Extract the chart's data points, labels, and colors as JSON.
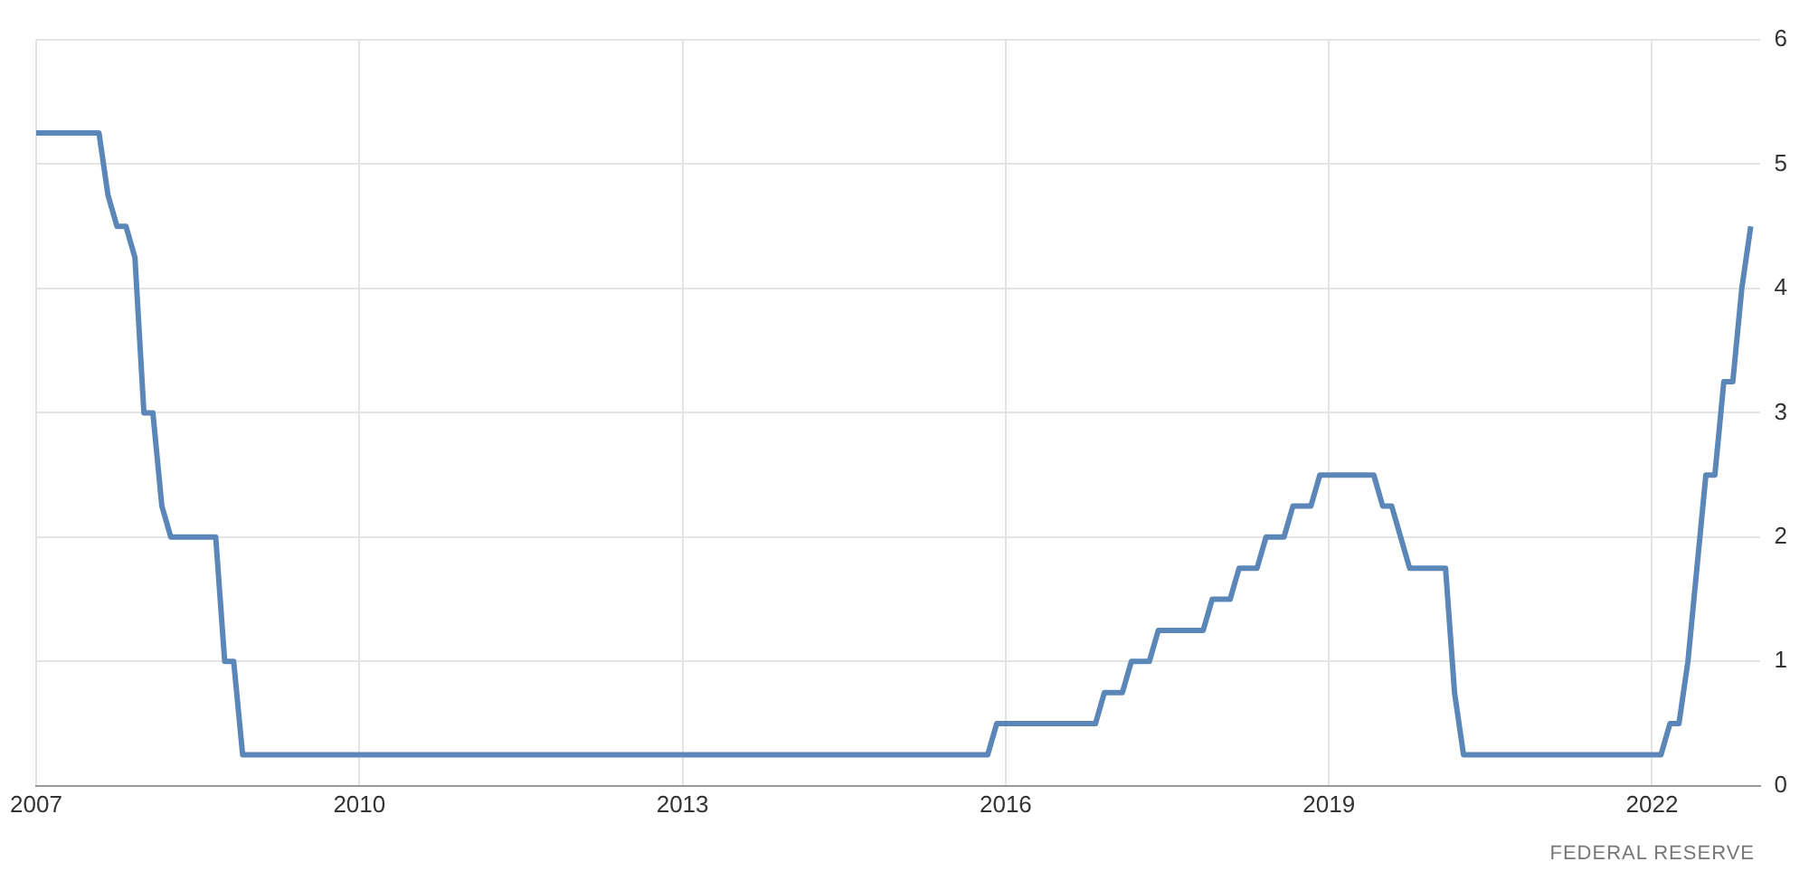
{
  "chart_data": {
    "type": "line",
    "color": "#5b86b8",
    "x": [
      "2007-01",
      "2007-08",
      "2007-09",
      "2007-10",
      "2007-11",
      "2007-12",
      "2008-01",
      "2008-02",
      "2008-03",
      "2008-04",
      "2008-09",
      "2008-10",
      "2008-11",
      "2008-12",
      "2015-11",
      "2015-12",
      "2016-11",
      "2016-12",
      "2017-02",
      "2017-03",
      "2017-05",
      "2017-06",
      "2017-11",
      "2017-12",
      "2018-02",
      "2018-03",
      "2018-05",
      "2018-06",
      "2018-08",
      "2018-09",
      "2018-11",
      "2018-12",
      "2019-06",
      "2019-07",
      "2019-08",
      "2019-09",
      "2019-10",
      "2020-02",
      "2020-03",
      "2020-04",
      "2022-02",
      "2022-03",
      "2022-04",
      "2022-05",
      "2022-06",
      "2022-07",
      "2022-08",
      "2022-09",
      "2022-10",
      "2022-11",
      "2022-12"
    ],
    "values": [
      5.25,
      5.25,
      4.75,
      4.5,
      4.5,
      4.25,
      3.0,
      3.0,
      2.25,
      2.0,
      2.0,
      1.0,
      1.0,
      0.25,
      0.25,
      0.5,
      0.5,
      0.75,
      0.75,
      1.0,
      1.0,
      1.25,
      1.25,
      1.5,
      1.5,
      1.75,
      1.75,
      2.0,
      2.0,
      2.25,
      2.25,
      2.5,
      2.5,
      2.25,
      2.25,
      2.0,
      1.75,
      1.75,
      0.75,
      0.25,
      0.25,
      0.5,
      0.5,
      1.0,
      1.75,
      2.5,
      2.5,
      3.25,
      3.25,
      4.0,
      4.5
    ],
    "xlim": [
      "2007-01",
      "2023-01"
    ],
    "xticks": [
      "2007",
      "2010",
      "2013",
      "2016",
      "2019",
      "2022"
    ],
    "ylim": [
      0,
      6
    ],
    "yticks": [
      0,
      1,
      2,
      3,
      4,
      5,
      6
    ],
    "grid": true,
    "marker": "none",
    "line_style": "solid",
    "annotations": [
      "FEDERAL RESERVE"
    ]
  }
}
